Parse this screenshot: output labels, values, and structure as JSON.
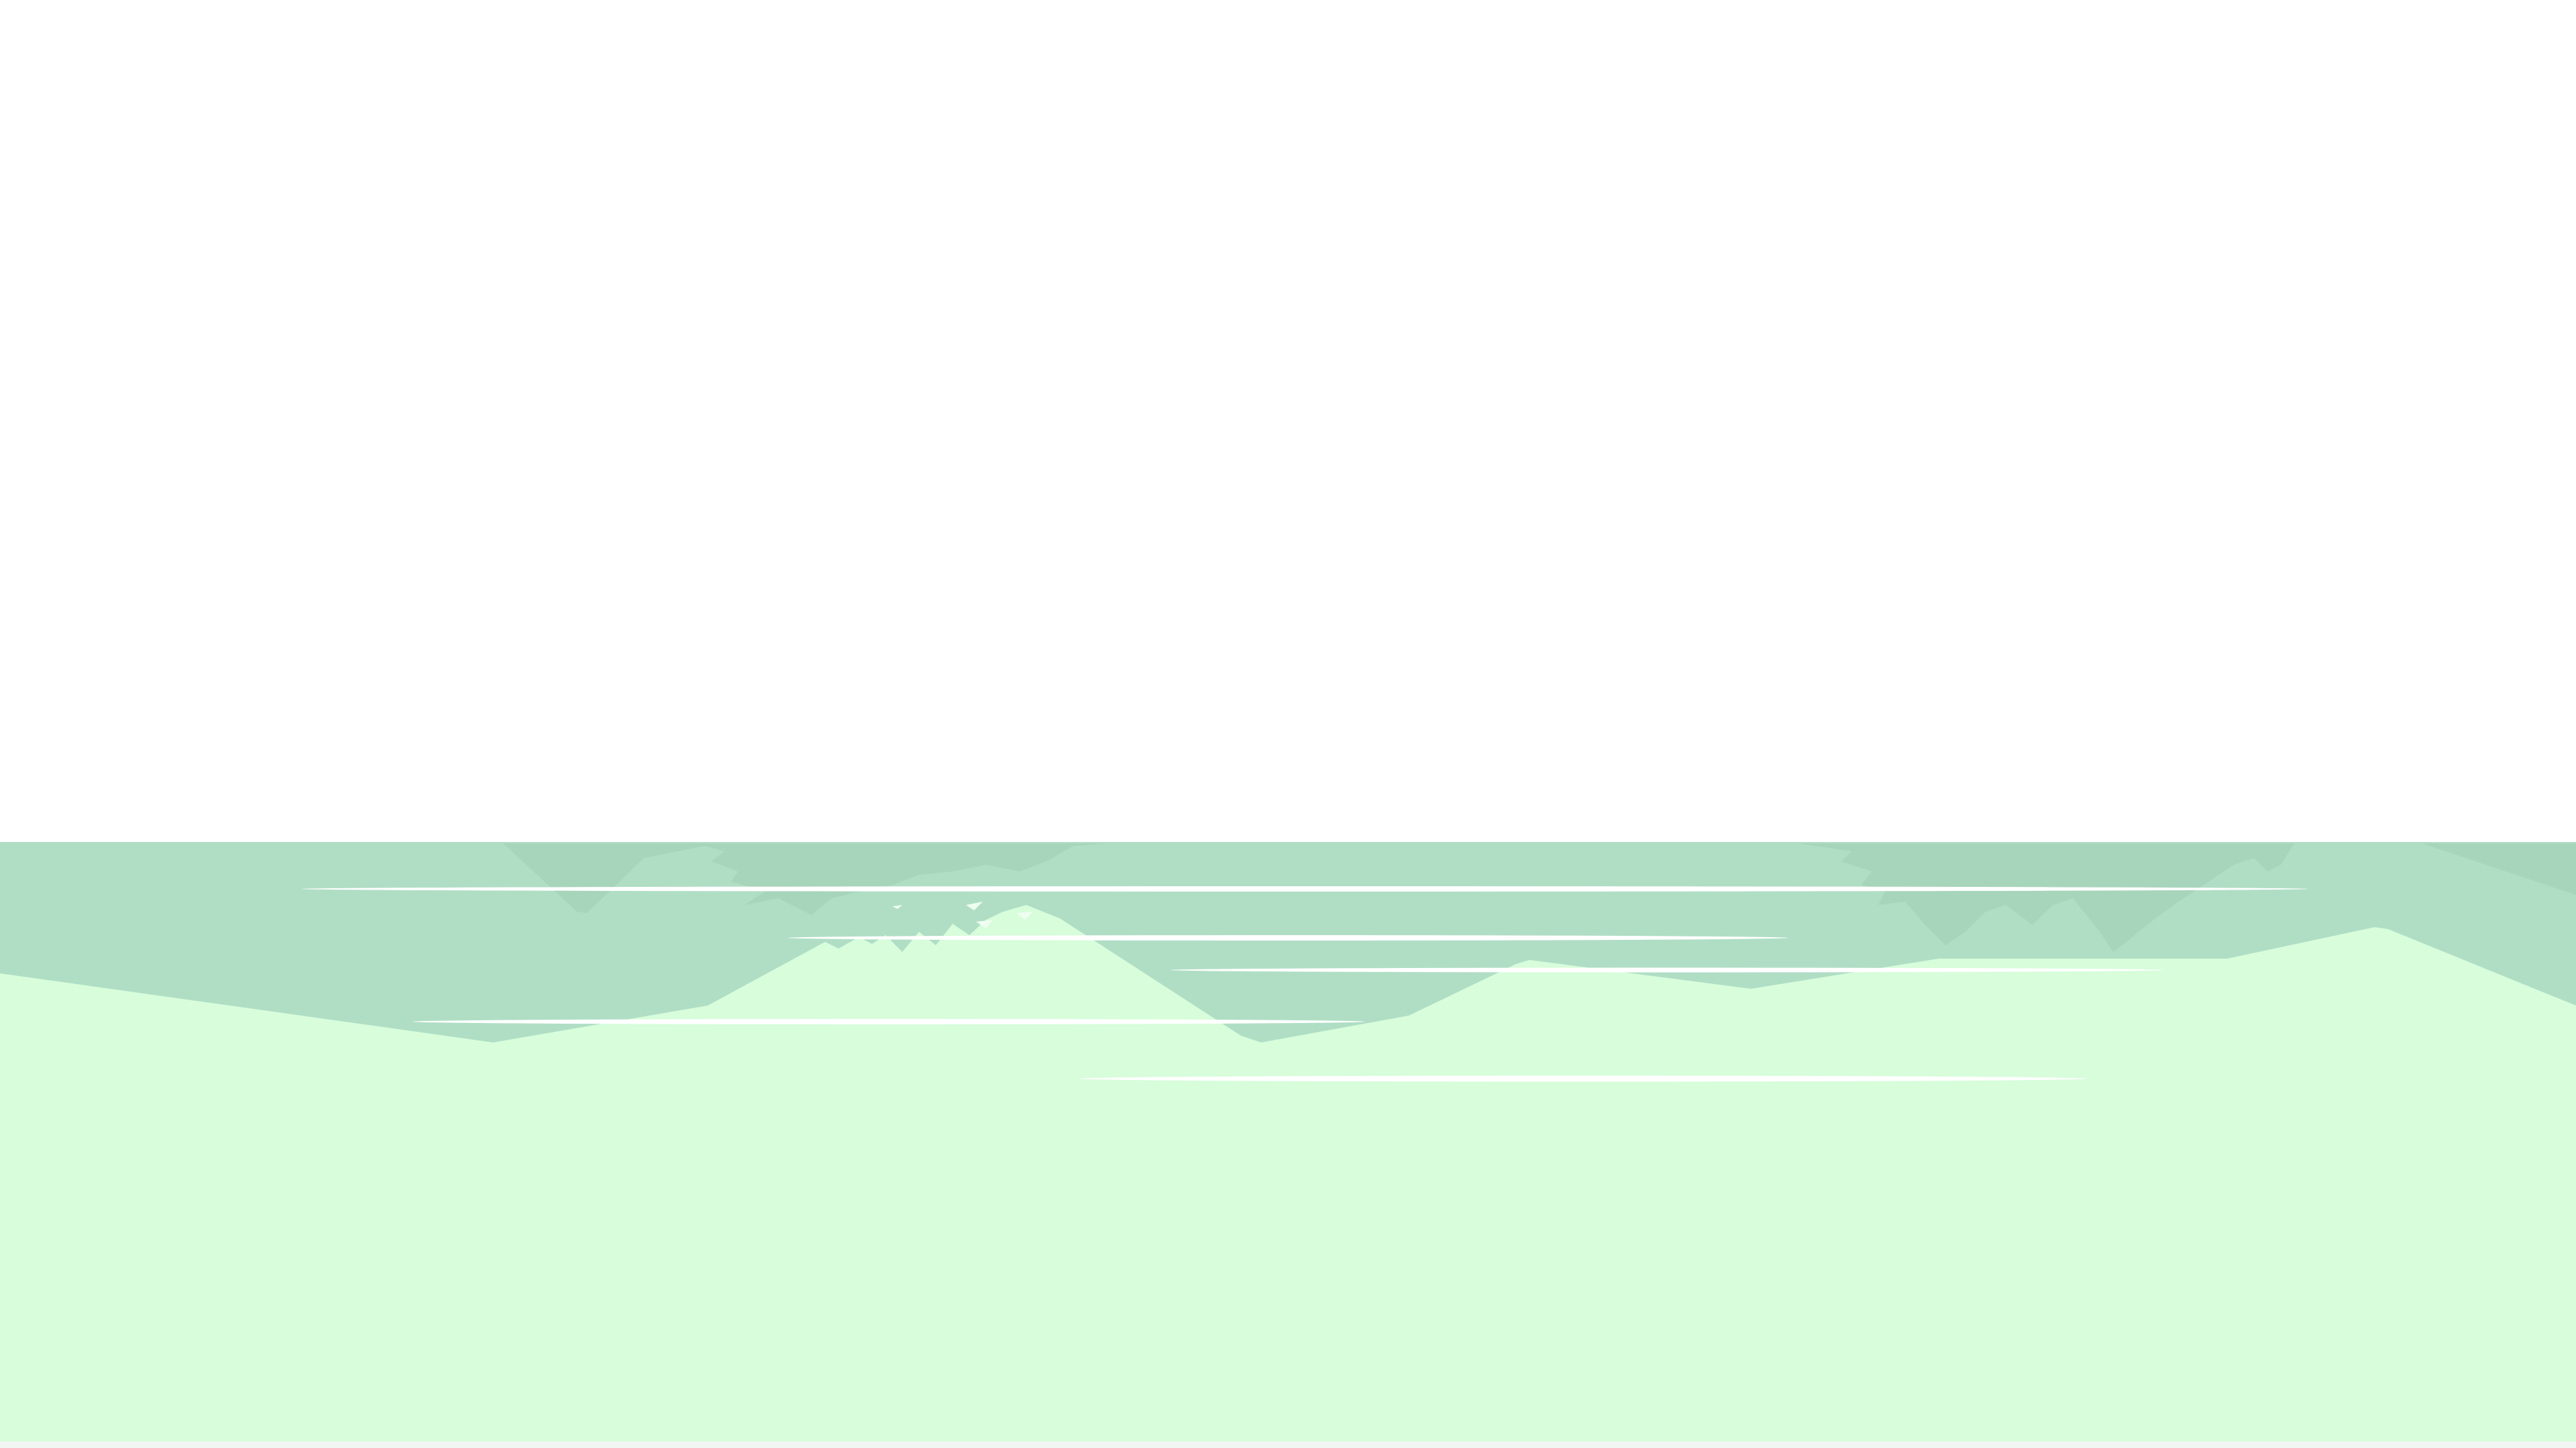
{
  "scene": {
    "palette": {
      "sky": "#ffffff",
      "water": "#b0dec5",
      "water_reflection": "#a6d3b9",
      "land": "#d7fddb",
      "ripple": "#ffffff",
      "ground_edge": "#f2f6f3"
    }
  }
}
